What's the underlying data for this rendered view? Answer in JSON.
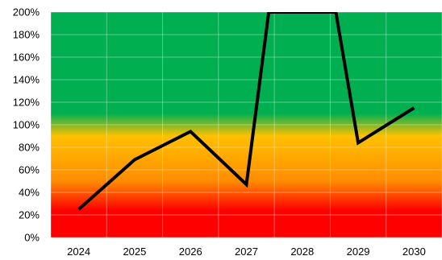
{
  "chart_data": {
    "type": "line",
    "title": "",
    "xlabel": "",
    "ylabel": "",
    "categories": [
      "2024",
      "2025",
      "2026",
      "2027",
      "2028",
      "2029",
      "2030"
    ],
    "y_ticks": [
      "0%",
      "20%",
      "40%",
      "60%",
      "80%",
      "100%",
      "120%",
      "140%",
      "160%",
      "180%",
      "200%"
    ],
    "ylim": [
      0,
      200
    ],
    "grid": true,
    "legend": "none",
    "series": [
      {
        "x": [
          2024,
          2025,
          2026,
          2027,
          2027.4,
          2028.6,
          2029,
          2030
        ],
        "values": [
          25,
          69,
          94,
          47,
          200,
          200,
          84,
          115
        ],
        "color": "#000000"
      }
    ],
    "background_bands": {
      "green": "#00b050",
      "yellow": "#ffc000",
      "orange": "#ff8c00",
      "red": "#ff0000"
    }
  }
}
